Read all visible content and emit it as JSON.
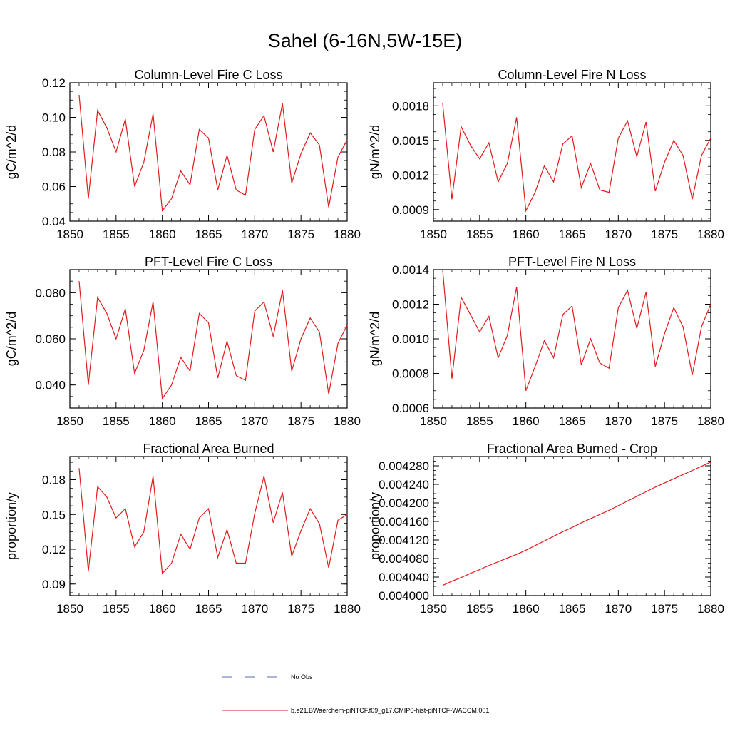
{
  "figure": {
    "title": "Sahel (6-16N,5W-15E)",
    "line_color": "#e31a1c",
    "obs_color": "#5a6ea8"
  },
  "legend": {
    "entries": [
      {
        "label": "No Obs",
        "style": "dashed",
        "color": "#5a6ea8"
      },
      {
        "label": "b.e21.BWaerchem-piNTCF.f09_g17.CMIP6-hist-piNTCF-WACCM.001",
        "style": "solid",
        "color": "#e31a1c"
      }
    ]
  },
  "chart_data": [
    {
      "type": "line",
      "title": "Column-Level Fire C Loss",
      "ylabel": "gC/m^2/d",
      "xlim": [
        1850,
        1880
      ],
      "ylim": [
        0.04,
        0.12
      ],
      "xticks": [
        1850,
        1855,
        1860,
        1865,
        1870,
        1875,
        1880
      ],
      "xtick_labels": [
        "1850",
        "1855",
        "1860",
        "1865",
        "1870",
        "1875",
        "1880"
      ],
      "yticks": [
        0.04,
        0.06,
        0.08,
        0.1,
        0.12
      ],
      "ytick_labels": [
        "0.04",
        "0.06",
        "0.08",
        "0.10",
        "0.12"
      ],
      "x": [
        1851,
        1852,
        1853,
        1854,
        1855,
        1856,
        1857,
        1858,
        1859,
        1860,
        1861,
        1862,
        1863,
        1864,
        1865,
        1866,
        1867,
        1868,
        1869,
        1870,
        1871,
        1872,
        1873,
        1874,
        1875,
        1876,
        1877,
        1878,
        1879,
        1880
      ],
      "series": [
        {
          "values": [
            0.113,
            0.053,
            0.104,
            0.094,
            0.08,
            0.099,
            0.06,
            0.074,
            0.102,
            0.046,
            0.053,
            0.069,
            0.061,
            0.093,
            0.088,
            0.058,
            0.078,
            0.058,
            0.055,
            0.093,
            0.101,
            0.08,
            0.108,
            0.062,
            0.079,
            0.091,
            0.084,
            0.048,
            0.077,
            0.087
          ]
        }
      ]
    },
    {
      "type": "line",
      "title": "Column-Level Fire N Loss",
      "ylabel": "gN/m^2/d",
      "xlim": [
        1850,
        1880
      ],
      "ylim": [
        0.0008,
        0.002
      ],
      "xticks": [
        1850,
        1855,
        1860,
        1865,
        1870,
        1875,
        1880
      ],
      "xtick_labels": [
        "1850",
        "1855",
        "1860",
        "1865",
        "1870",
        "1875",
        "1880"
      ],
      "yticks": [
        0.0009,
        0.0012,
        0.0015,
        0.0018
      ],
      "ytick_labels": [
        "0.0009",
        "0.0012",
        "0.0015",
        "0.0018"
      ],
      "x": [
        1851,
        1852,
        1853,
        1854,
        1855,
        1856,
        1857,
        1858,
        1859,
        1860,
        1861,
        1862,
        1863,
        1864,
        1865,
        1866,
        1867,
        1868,
        1869,
        1870,
        1871,
        1872,
        1873,
        1874,
        1875,
        1876,
        1877,
        1878,
        1879,
        1880
      ],
      "series": [
        {
          "values": [
            0.00182,
            0.00099,
            0.00162,
            0.00146,
            0.00134,
            0.00148,
            0.00114,
            0.0013,
            0.0017,
            0.00089,
            0.00105,
            0.00128,
            0.00114,
            0.00147,
            0.00154,
            0.00109,
            0.0013,
            0.00107,
            0.00105,
            0.00152,
            0.00167,
            0.00136,
            0.00166,
            0.00106,
            0.00131,
            0.0015,
            0.00137,
            0.00099,
            0.00137,
            0.00152
          ]
        }
      ]
    },
    {
      "type": "line",
      "title": "PFT-Level Fire C Loss",
      "ylabel": "gC/m^2/d",
      "xlim": [
        1850,
        1880
      ],
      "ylim": [
        0.03,
        0.09
      ],
      "xticks": [
        1850,
        1855,
        1860,
        1865,
        1870,
        1875,
        1880
      ],
      "xtick_labels": [
        "1850",
        "1855",
        "1860",
        "1865",
        "1870",
        "1875",
        "1880"
      ],
      "yticks": [
        0.04,
        0.06,
        0.08
      ],
      "ytick_labels": [
        "0.040",
        "0.060",
        "0.080"
      ],
      "x": [
        1851,
        1852,
        1853,
        1854,
        1855,
        1856,
        1857,
        1858,
        1859,
        1860,
        1861,
        1862,
        1863,
        1864,
        1865,
        1866,
        1867,
        1868,
        1869,
        1870,
        1871,
        1872,
        1873,
        1874,
        1875,
        1876,
        1877,
        1878,
        1879,
        1880
      ],
      "series": [
        {
          "values": [
            0.085,
            0.04,
            0.078,
            0.071,
            0.06,
            0.073,
            0.045,
            0.055,
            0.076,
            0.034,
            0.04,
            0.052,
            0.046,
            0.071,
            0.067,
            0.043,
            0.059,
            0.044,
            0.042,
            0.072,
            0.076,
            0.061,
            0.081,
            0.046,
            0.06,
            0.069,
            0.063,
            0.036,
            0.058,
            0.066
          ]
        }
      ]
    },
    {
      "type": "line",
      "title": "PFT-Level Fire N Loss",
      "ylabel": "gN/m^2/d",
      "xlim": [
        1850,
        1880
      ],
      "ylim": [
        0.0006,
        0.0014
      ],
      "xticks": [
        1850,
        1855,
        1860,
        1865,
        1870,
        1875,
        1880
      ],
      "xtick_labels": [
        "1850",
        "1855",
        "1860",
        "1865",
        "1870",
        "1875",
        "1880"
      ],
      "yticks": [
        0.0006,
        0.0008,
        0.001,
        0.0012,
        0.0014
      ],
      "ytick_labels": [
        "0.0006",
        "0.0008",
        "0.0010",
        "0.0012",
        "0.0014"
      ],
      "x": [
        1851,
        1852,
        1853,
        1854,
        1855,
        1856,
        1857,
        1858,
        1859,
        1860,
        1861,
        1862,
        1863,
        1864,
        1865,
        1866,
        1867,
        1868,
        1869,
        1870,
        1871,
        1872,
        1873,
        1874,
        1875,
        1876,
        1877,
        1878,
        1879,
        1880
      ],
      "series": [
        {
          "values": [
            0.0014,
            0.00077,
            0.00124,
            0.00114,
            0.00104,
            0.00113,
            0.00089,
            0.00102,
            0.0013,
            0.0007,
            0.00084,
            0.00099,
            0.00089,
            0.00114,
            0.00119,
            0.00085,
            0.001,
            0.00086,
            0.00083,
            0.00118,
            0.00128,
            0.00106,
            0.00127,
            0.00084,
            0.00103,
            0.00118,
            0.00107,
            0.00079,
            0.00107,
            0.0012
          ]
        }
      ]
    },
    {
      "type": "line",
      "title": "Fractional Area Burned",
      "ylabel": "proportion/y",
      "xlim": [
        1850,
        1880
      ],
      "ylim": [
        0.08,
        0.2
      ],
      "xticks": [
        1850,
        1855,
        1860,
        1865,
        1870,
        1875,
        1880
      ],
      "xtick_labels": [
        "1850",
        "1855",
        "1860",
        "1865",
        "1870",
        "1875",
        "1880"
      ],
      "yticks": [
        0.09,
        0.12,
        0.15,
        0.18
      ],
      "ytick_labels": [
        "0.09",
        "0.12",
        "0.15",
        "0.18"
      ],
      "x": [
        1851,
        1852,
        1853,
        1854,
        1855,
        1856,
        1857,
        1858,
        1859,
        1860,
        1861,
        1862,
        1863,
        1864,
        1865,
        1866,
        1867,
        1868,
        1869,
        1870,
        1871,
        1872,
        1873,
        1874,
        1875,
        1876,
        1877,
        1878,
        1879,
        1880
      ],
      "series": [
        {
          "values": [
            0.19,
            0.101,
            0.174,
            0.165,
            0.147,
            0.155,
            0.122,
            0.135,
            0.183,
            0.099,
            0.108,
            0.133,
            0.12,
            0.147,
            0.155,
            0.113,
            0.137,
            0.108,
            0.108,
            0.151,
            0.183,
            0.143,
            0.169,
            0.114,
            0.136,
            0.155,
            0.142,
            0.104,
            0.145,
            0.15
          ]
        }
      ]
    },
    {
      "type": "line",
      "title": "Fractional Area Burned - Crop",
      "ylabel": "proportion/y",
      "xlim": [
        1850,
        1880
      ],
      "ylim": [
        0.004,
        0.0043
      ],
      "xticks": [
        1850,
        1855,
        1860,
        1865,
        1870,
        1875,
        1880
      ],
      "xtick_labels": [
        "1850",
        "1855",
        "1860",
        "1865",
        "1870",
        "1875",
        "1880"
      ],
      "yticks": [
        0.004,
        0.00404,
        0.00408,
        0.00412,
        0.00416,
        0.0042,
        0.00424,
        0.00428
      ],
      "ytick_labels": [
        "0.004000",
        "0.004040",
        "0.004080",
        "0.004120",
        "0.004160",
        "0.004200",
        "0.004240",
        "0.004280"
      ],
      "x": [
        1851,
        1852,
        1853,
        1854,
        1855,
        1856,
        1857,
        1858,
        1859,
        1860,
        1861,
        1862,
        1863,
        1864,
        1865,
        1866,
        1867,
        1868,
        1869,
        1870,
        1871,
        1872,
        1873,
        1874,
        1875,
        1876,
        1877,
        1878,
        1879,
        1880
      ],
      "series": [
        {
          "values": [
            0.004022,
            0.004031,
            0.004039,
            0.004048,
            0.004056,
            0.004065,
            0.004073,
            0.004081,
            0.004089,
            0.004098,
            0.004108,
            0.004118,
            0.004128,
            0.004138,
            0.004147,
            0.004157,
            0.004166,
            0.004175,
            0.004184,
            0.004194,
            0.004204,
            0.004214,
            0.004224,
            0.004234,
            0.004243,
            0.004252,
            0.004261,
            0.00427,
            0.004279,
            0.004288
          ]
        }
      ]
    }
  ]
}
